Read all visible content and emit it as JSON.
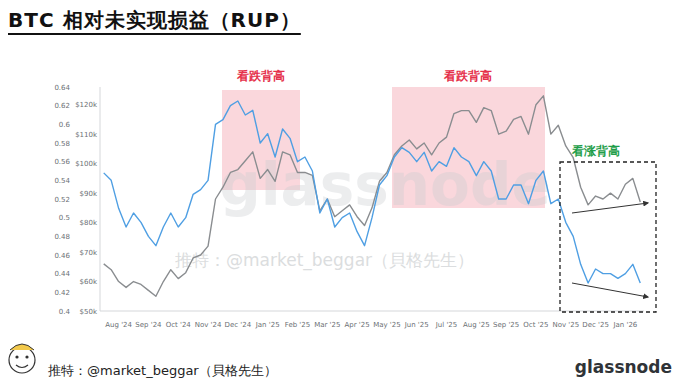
{
  "chart_data": {
    "type": "line",
    "title": "BTC 相对未实现损益（RUP）",
    "categories": [
      null,
      null,
      "Aug '24",
      null,
      null,
      null,
      "Sep '24",
      null,
      null,
      null,
      "Oct '24",
      null,
      null,
      null,
      "Nov '24",
      null,
      null,
      null,
      "Dec '24",
      null,
      null,
      null,
      "Jan '25",
      null,
      null,
      null,
      "Feb '25",
      null,
      null,
      null,
      "Mar '25",
      null,
      null,
      null,
      "Apr '25",
      null,
      null,
      null,
      "May '25",
      null,
      null,
      null,
      "Jun '25",
      null,
      null,
      null,
      "Jul '25",
      null,
      null,
      null,
      "Aug '25",
      null,
      null,
      null,
      "Sep '25",
      null,
      null,
      null,
      "Oct '25",
      null,
      null,
      null,
      "Nov '25",
      null,
      null,
      null,
      "Dec '25",
      null,
      null,
      null,
      "Jan '26",
      null,
      null
    ],
    "series": [
      {
        "color": "#4f9fe3",
        "values": [
          0.548,
          0.54,
          0.51,
          0.49,
          0.505,
          0.495,
          0.48,
          0.47,
          0.49,
          0.505,
          0.49,
          0.5,
          0.525,
          0.53,
          0.54,
          0.6,
          0.605,
          0.62,
          0.625,
          0.61,
          0.615,
          0.58,
          0.59,
          0.565,
          0.595,
          0.585,
          0.56,
          0.565,
          0.55,
          0.505,
          0.52,
          0.49,
          0.5,
          0.505,
          0.485,
          0.47,
          0.5,
          0.535,
          0.545,
          0.565,
          0.575,
          0.57,
          0.56,
          0.57,
          0.55,
          0.56,
          0.555,
          0.575,
          0.565,
          0.56,
          0.545,
          0.56,
          0.55,
          0.52,
          0.52,
          0.535,
          0.535,
          0.515,
          0.54,
          0.55,
          0.515,
          0.52,
          0.495,
          0.48,
          0.45,
          0.43,
          0.445,
          0.44,
          0.44,
          0.435,
          0.44,
          0.45,
          0.43
        ]
      },
      {
        "color": "#8a8d90",
        "axis": "y2",
        "values": [
          66000,
          64000,
          60000,
          58000,
          60000,
          59000,
          57000,
          55000,
          60000,
          64000,
          61000,
          63000,
          68000,
          69000,
          72000,
          88000,
          92000,
          97000,
          98000,
          101000,
          104000,
          95000,
          98000,
          94000,
          104000,
          103000,
          97000,
          97000,
          96000,
          84000,
          88000,
          82000,
          84000,
          86000,
          82000,
          79000,
          85000,
          94000,
          97000,
          103000,
          106000,
          108000,
          105000,
          107000,
          103000,
          107000,
          109000,
          117000,
          118000,
          118000,
          114000,
          119000,
          118000,
          110000,
          111000,
          115000,
          116000,
          110000,
          120000,
          123000,
          110000,
          113000,
          106000,
          102000,
          92000,
          86000,
          89000,
          88000,
          90000,
          88000,
          93000,
          95000,
          87000
        ]
      }
    ],
    "ylim": [
      0.4,
      0.64
    ],
    "yticks": [
      0.4,
      0.42,
      0.44,
      0.46,
      0.48,
      0.5,
      0.52,
      0.54,
      0.56,
      0.58,
      0.6,
      0.62,
      0.64
    ],
    "y2lim": [
      50000,
      126000
    ],
    "y2ticks": [
      {
        "value": 50000,
        "label": "$50k"
      },
      {
        "value": 60000,
        "label": "$60k"
      },
      {
        "value": 70000,
        "label": "$70k"
      },
      {
        "value": 80000,
        "label": "$80k"
      },
      {
        "value": 90000,
        "label": "$90k"
      },
      {
        "value": 100000,
        "label": "$100k"
      },
      {
        "value": 110000,
        "label": "$110k"
      },
      {
        "value": 120000,
        "label": "$120k"
      }
    ],
    "grid": false,
    "annotations": [
      {
        "text": "看跌背高",
        "color": "#e5304a"
      },
      {
        "text": "看跌背高",
        "color": "#e5304a"
      },
      {
        "text": "看涨背高",
        "color": "#1f9e4a"
      }
    ]
  },
  "page": {
    "watermarks": [
      "glassnode",
      "推特：@market_beggar（貝格先生）"
    ],
    "credit": "推特：@market_beggar（貝格先生）",
    "logo": "glassnode"
  }
}
